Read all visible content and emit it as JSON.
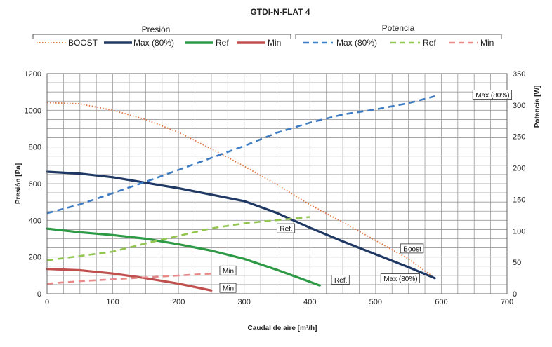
{
  "chart_data": {
    "type": "line",
    "title": "GTDI-N-FLAT 4",
    "xlabel": "Caudal de aire [m³/h]",
    "ylabel": "Presión [Pa]",
    "y2label": "Potencia [W]",
    "xlim": [
      0,
      700
    ],
    "ylim": [
      0,
      1200
    ],
    "y2lim": [
      0,
      350
    ],
    "x_major_ticks": [
      0,
      100,
      200,
      300,
      400,
      500,
      600,
      700
    ],
    "y_major_ticks": [
      0,
      200,
      400,
      600,
      800,
      1000,
      1200
    ],
    "y2_major_ticks": [
      0,
      50,
      100,
      150,
      200,
      250,
      300,
      350
    ],
    "grid": true,
    "legend_groups": [
      {
        "label": "Presión",
        "entries": [
          "BOOST",
          "Max (80%)",
          "Ref",
          "Min"
        ]
      },
      {
        "label": "Potencia",
        "entries": [
          "Max (80%)",
          "Ref",
          "Min"
        ]
      }
    ],
    "series": [
      {
        "name": "BOOST",
        "group": "Presión",
        "axis": "left",
        "color": "#e2703a",
        "style": "dotted",
        "x": [
          0,
          50,
          100,
          150,
          200,
          250,
          300,
          350,
          400,
          450,
          500,
          550,
          590
        ],
        "y": [
          1042,
          1035,
          1000,
          950,
          880,
          790,
          695,
          595,
          485,
          390,
          290,
          190,
          85
        ]
      },
      {
        "name": "Max (80%)",
        "group": "Presión",
        "axis": "left",
        "color": "#1f3864",
        "style": "solid",
        "x": [
          0,
          50,
          100,
          150,
          200,
          250,
          300,
          350,
          400,
          450,
          500,
          550,
          590
        ],
        "y": [
          665,
          655,
          635,
          605,
          575,
          540,
          505,
          440,
          360,
          285,
          215,
          145,
          85
        ]
      },
      {
        "name": "Ref",
        "group": "Presión",
        "axis": "left",
        "color": "#2e9a46",
        "style": "solid",
        "x": [
          0,
          50,
          100,
          150,
          200,
          250,
          300,
          350,
          400,
          415
        ],
        "y": [
          355,
          335,
          320,
          300,
          270,
          235,
          190,
          130,
          65,
          45
        ]
      },
      {
        "name": "Min",
        "group": "Presión",
        "axis": "left",
        "color": "#c0504d",
        "style": "solid",
        "x": [
          0,
          50,
          100,
          150,
          200,
          250
        ],
        "y": [
          135,
          128,
          110,
          85,
          55,
          18
        ]
      },
      {
        "name": "Max (80%)",
        "group": "Potencia",
        "axis": "right",
        "color": "#3e7cc4",
        "style": "dashed",
        "x": [
          0,
          50,
          100,
          150,
          200,
          250,
          300,
          350,
          400,
          450,
          500,
          550,
          590
        ],
        "y": [
          128,
          142,
          160,
          178,
          197,
          216,
          235,
          256,
          272,
          285,
          293,
          303,
          314
        ]
      },
      {
        "name": "Ref",
        "group": "Potencia",
        "axis": "right",
        "color": "#92c650",
        "style": "dashed",
        "x": [
          0,
          50,
          100,
          150,
          200,
          250,
          300,
          350,
          400
        ],
        "y": [
          53,
          60,
          67,
          80,
          92,
          104,
          112,
          117,
          122
        ]
      },
      {
        "name": "Min",
        "group": "Potencia",
        "axis": "right",
        "color": "#e8898a",
        "style": "dashed",
        "x": [
          0,
          50,
          100,
          150,
          200,
          250
        ],
        "y": [
          16,
          20,
          23,
          26,
          29,
          32
        ]
      }
    ],
    "annotations": [
      {
        "text": "Max (80%)",
        "x": 650,
        "y_axis": "right",
        "y": 316
      },
      {
        "text": "Boost",
        "x": 540,
        "y_axis": "left",
        "y": 245
      },
      {
        "text": "Ref.",
        "x": 352,
        "y_axis": "left",
        "y": 355
      },
      {
        "text": "Max (80%)",
        "x": 510,
        "y_axis": "left",
        "y": 82
      },
      {
        "text": "Ref.",
        "x": 435,
        "y_axis": "left",
        "y": 75
      },
      {
        "text": "Min",
        "x": 265,
        "y_axis": "left",
        "y": 125
      },
      {
        "text": "Min",
        "x": 265,
        "y_axis": "left",
        "y": 30
      }
    ]
  }
}
